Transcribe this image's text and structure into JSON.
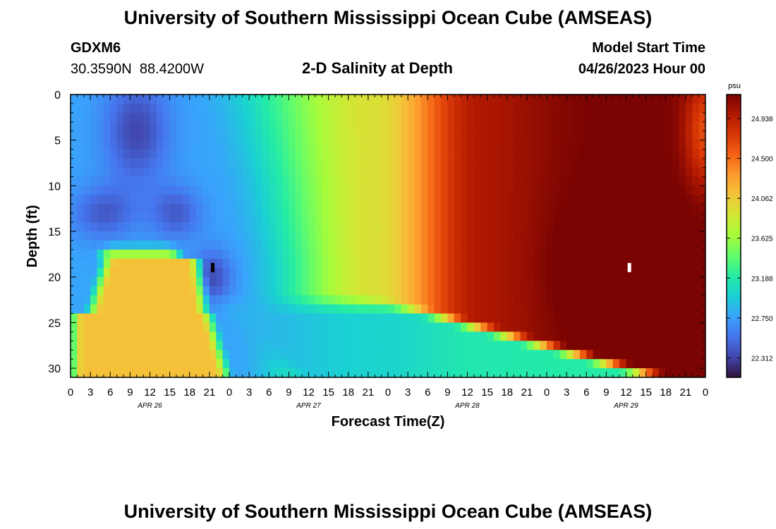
{
  "header": {
    "title": "University of Southern Mississippi Ocean Cube (AMSEAS)",
    "footer_title": "University of Southern Mississippi Ocean Cube (AMSEAS)",
    "station_id": "GDXM6",
    "station_coords": "30.3590N  88.4200W",
    "model_start_label": "Model Start Time",
    "model_start_value": "04/26/2023 Hour 00"
  },
  "chart_data": {
    "type": "heatmap",
    "title": "2-D Salinity at Depth",
    "xlabel": "Forecast Time(Z)",
    "ylabel": "Depth (ft)",
    "x_range_hours": [
      0,
      96
    ],
    "y_range": [
      0,
      31
    ],
    "y_ticks": [
      0,
      5,
      10,
      15,
      20,
      25,
      30
    ],
    "x_tick_labels": [
      "0",
      "3",
      "6",
      "9",
      "12",
      "15",
      "18",
      "21",
      "0",
      "3",
      "6",
      "9",
      "12",
      "15",
      "18",
      "21",
      "0",
      "3",
      "6",
      "9",
      "12",
      "15",
      "18",
      "21",
      "0",
      "3",
      "6",
      "9",
      "12",
      "15",
      "18",
      "21",
      "0"
    ],
    "day_labels": [
      {
        "label": "APR 26",
        "hour": 12
      },
      {
        "label": "APR 27",
        "hour": 36
      },
      {
        "label": "APR 28",
        "hour": 60
      },
      {
        "label": "APR 29",
        "hour": 84
      }
    ],
    "colorbar": {
      "unit": "psu",
      "ticks": [
        22.312,
        22.75,
        23.188,
        23.625,
        24.062,
        24.5,
        24.938
      ],
      "tick_labels": [
        "22.312",
        "22.750",
        "23.188",
        "23.625",
        "24.062",
        "24.500",
        "24.938"
      ],
      "range": [
        22.1,
        25.2
      ],
      "colors": [
        "#30123b",
        "#4145ab",
        "#4675ed",
        "#39a2fc",
        "#1bcfd4",
        "#24eca6",
        "#61fc6c",
        "#a4fc3b",
        "#d1e834",
        "#f3c63a",
        "#fe9b2d",
        "#f36315",
        "#d93806",
        "#b11901",
        "#7a0402"
      ]
    },
    "markers": [
      {
        "hour": 21.5,
        "depth": 19,
        "color": "#000000"
      },
      {
        "hour": 84.5,
        "depth": 19,
        "color": "#ffffff"
      }
    ],
    "grid": false,
    "salinity_field_note_free": true
  }
}
